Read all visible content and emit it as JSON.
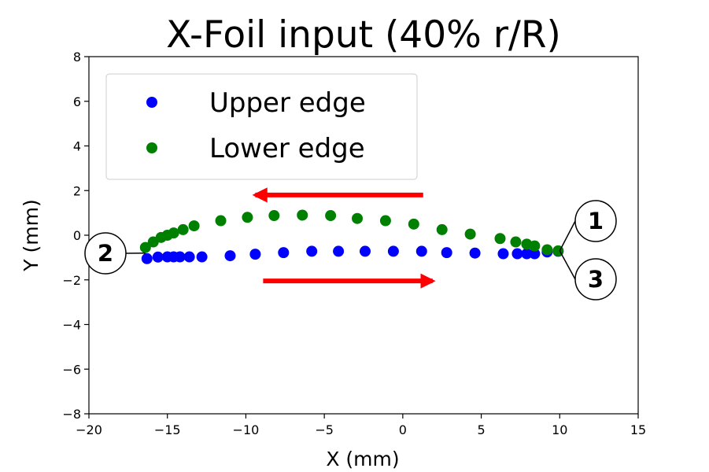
{
  "chart_data": {
    "type": "scatter",
    "title": "X-Foil input (40% r/R)",
    "xlabel": "X (mm)",
    "ylabel": "Y (mm)",
    "xlim": [
      -20,
      15
    ],
    "ylim": [
      -8,
      8
    ],
    "x_ticks": [
      -20,
      -15,
      -10,
      -5,
      0,
      5,
      10,
      15
    ],
    "y_ticks": [
      -8,
      -6,
      -4,
      -2,
      0,
      2,
      4,
      6,
      8
    ],
    "x_tick_labels": [
      "−20",
      "−15",
      "−10",
      "−5",
      "0",
      "5",
      "10",
      "15"
    ],
    "y_tick_labels": [
      "−8",
      "−6",
      "−4",
      "−2",
      "0",
      "2",
      "4",
      "6",
      "8"
    ],
    "grid": false,
    "legend_position": "top-left",
    "series": [
      {
        "name": "Upper edge",
        "color": "#0000ff",
        "points": [
          [
            -16.3,
            -1.05
          ],
          [
            -15.6,
            -0.98
          ],
          [
            -15.0,
            -0.97
          ],
          [
            -14.6,
            -0.97
          ],
          [
            -14.2,
            -0.97
          ],
          [
            -13.6,
            -0.97
          ],
          [
            -12.8,
            -0.97
          ],
          [
            -11.0,
            -0.92
          ],
          [
            -9.4,
            -0.85
          ],
          [
            -7.6,
            -0.78
          ],
          [
            -5.8,
            -0.72
          ],
          [
            -4.1,
            -0.72
          ],
          [
            -2.4,
            -0.72
          ],
          [
            -0.6,
            -0.72
          ],
          [
            1.2,
            -0.72
          ],
          [
            2.8,
            -0.78
          ],
          [
            4.6,
            -0.8
          ],
          [
            6.4,
            -0.83
          ],
          [
            7.3,
            -0.83
          ],
          [
            7.9,
            -0.83
          ],
          [
            8.4,
            -0.83
          ],
          [
            9.2,
            -0.75
          ],
          [
            9.9,
            -0.72
          ]
        ]
      },
      {
        "name": "Lower edge",
        "color": "#008000",
        "points": [
          [
            -16.4,
            -0.55
          ],
          [
            -15.9,
            -0.3
          ],
          [
            -15.4,
            -0.1
          ],
          [
            -15.0,
            0.0
          ],
          [
            -14.6,
            0.1
          ],
          [
            -14.0,
            0.25
          ],
          [
            -13.3,
            0.42
          ],
          [
            -11.6,
            0.65
          ],
          [
            -9.9,
            0.8
          ],
          [
            -8.2,
            0.88
          ],
          [
            -6.4,
            0.9
          ],
          [
            -4.6,
            0.88
          ],
          [
            -2.9,
            0.75
          ],
          [
            -1.1,
            0.65
          ],
          [
            0.7,
            0.5
          ],
          [
            2.5,
            0.25
          ],
          [
            4.3,
            0.05
          ],
          [
            6.2,
            -0.15
          ],
          [
            7.2,
            -0.3
          ],
          [
            7.9,
            -0.4
          ],
          [
            8.4,
            -0.48
          ],
          [
            9.2,
            -0.65
          ],
          [
            9.9,
            -0.7
          ]
        ]
      }
    ],
    "annotations": [
      {
        "label": "1",
        "kind": "callout",
        "anchor": [
          10.0,
          -0.7
        ]
      },
      {
        "label": "2",
        "kind": "callout",
        "anchor": [
          -16.4,
          -0.8
        ]
      },
      {
        "label": "3",
        "kind": "callout",
        "anchor": [
          10.0,
          -0.7
        ]
      },
      {
        "kind": "arrow",
        "direction": "left",
        "color": "#ff0000",
        "from": [
          1.3,
          1.8
        ],
        "to": [
          -9.4,
          1.8
        ]
      },
      {
        "kind": "arrow",
        "direction": "right",
        "color": "#ff0000",
        "from": [
          -8.9,
          -2.05
        ],
        "to": [
          1.9,
          -2.05
        ]
      }
    ]
  }
}
